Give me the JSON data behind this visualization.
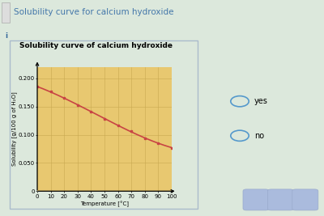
{
  "title_main": "Solubility curve for calcium hydroxide",
  "chart_title": "Solubility curve of calcium hydroxide",
  "xlabel": "Temperature [°C]",
  "ylabel": "Solubility [g/100 g of H₂O]",
  "x_data": [
    0,
    10,
    20,
    30,
    40,
    50,
    60,
    70,
    80,
    90,
    100
  ],
  "y_data": [
    0.185,
    0.176,
    0.165,
    0.153,
    0.141,
    0.128,
    0.116,
    0.106,
    0.094,
    0.085,
    0.077
  ],
  "xlim": [
    0,
    100
  ],
  "ylim": [
    0,
    0.22
  ],
  "yticks": [
    0,
    0.05,
    0.1,
    0.15,
    0.2
  ],
  "ytick_labels": [
    "0",
    "0.050",
    "0.100",
    "0.150",
    "0.200"
  ],
  "xticks": [
    0,
    10,
    20,
    30,
    40,
    50,
    60,
    70,
    80,
    90,
    100
  ],
  "line_color": "#c84444",
  "marker_color": "#c84444",
  "bg_outer": "#dce8dc",
  "bg_panel": "#dce8dc",
  "bg_title_bar": "#e8e8e8",
  "bg_chart_box": "#e8c870",
  "grid_color": "#c8a850",
  "title_color": "#4477aa",
  "title_fontsize": 7.5,
  "chart_title_fontsize": 6.5,
  "axis_label_fontsize": 5,
  "tick_fontsize": 5,
  "option_yes": "yes",
  "option_no": "no",
  "circle_color": "#5599cc"
}
